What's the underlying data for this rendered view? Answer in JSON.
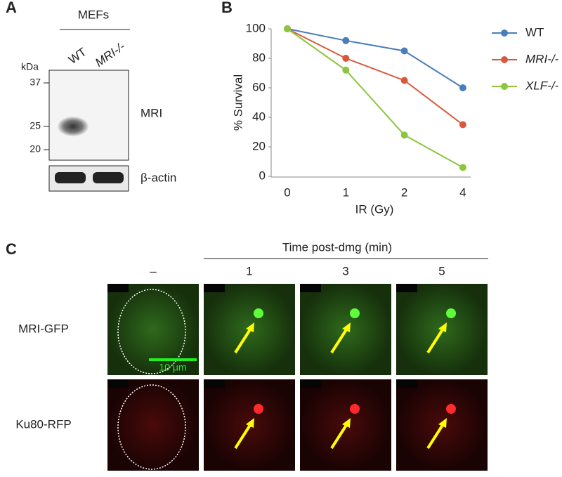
{
  "panel_a": {
    "label": "A",
    "header": "MEFs",
    "lanes": [
      "WT",
      "MRI-/-"
    ],
    "unit": "kDa",
    "markers": [
      37,
      25,
      20
    ],
    "blot_labels": [
      "MRI",
      "β-actin"
    ]
  },
  "chart_data": {
    "type": "line",
    "panel_label": "B",
    "x_label": "IR (Gy)",
    "y_label": "% Survival",
    "categories": [
      "0",
      "1",
      "2",
      "4"
    ],
    "series": [
      {
        "name": "WT",
        "color": "#4a7ebb",
        "values": [
          100,
          92,
          85,
          60
        ]
      },
      {
        "name": "MRI-/-",
        "color": "#d9593d",
        "values": [
          100,
          80,
          65,
          35
        ]
      },
      {
        "name": "XLF-/-",
        "color": "#8cc63f",
        "values": [
          100,
          72,
          28,
          6
        ]
      }
    ],
    "ylim": [
      0,
      100
    ],
    "yticks": [
      0,
      20,
      40,
      60,
      80,
      100
    ],
    "grid": false,
    "legend": "right"
  },
  "panel_c": {
    "label": "C",
    "header": "Time post-dmg (min)",
    "columns": [
      "–",
      "1",
      "3",
      "5"
    ],
    "rows": [
      "MRI-GFP",
      "Ku80-RFP"
    ],
    "scale_bar": "10 μm"
  }
}
